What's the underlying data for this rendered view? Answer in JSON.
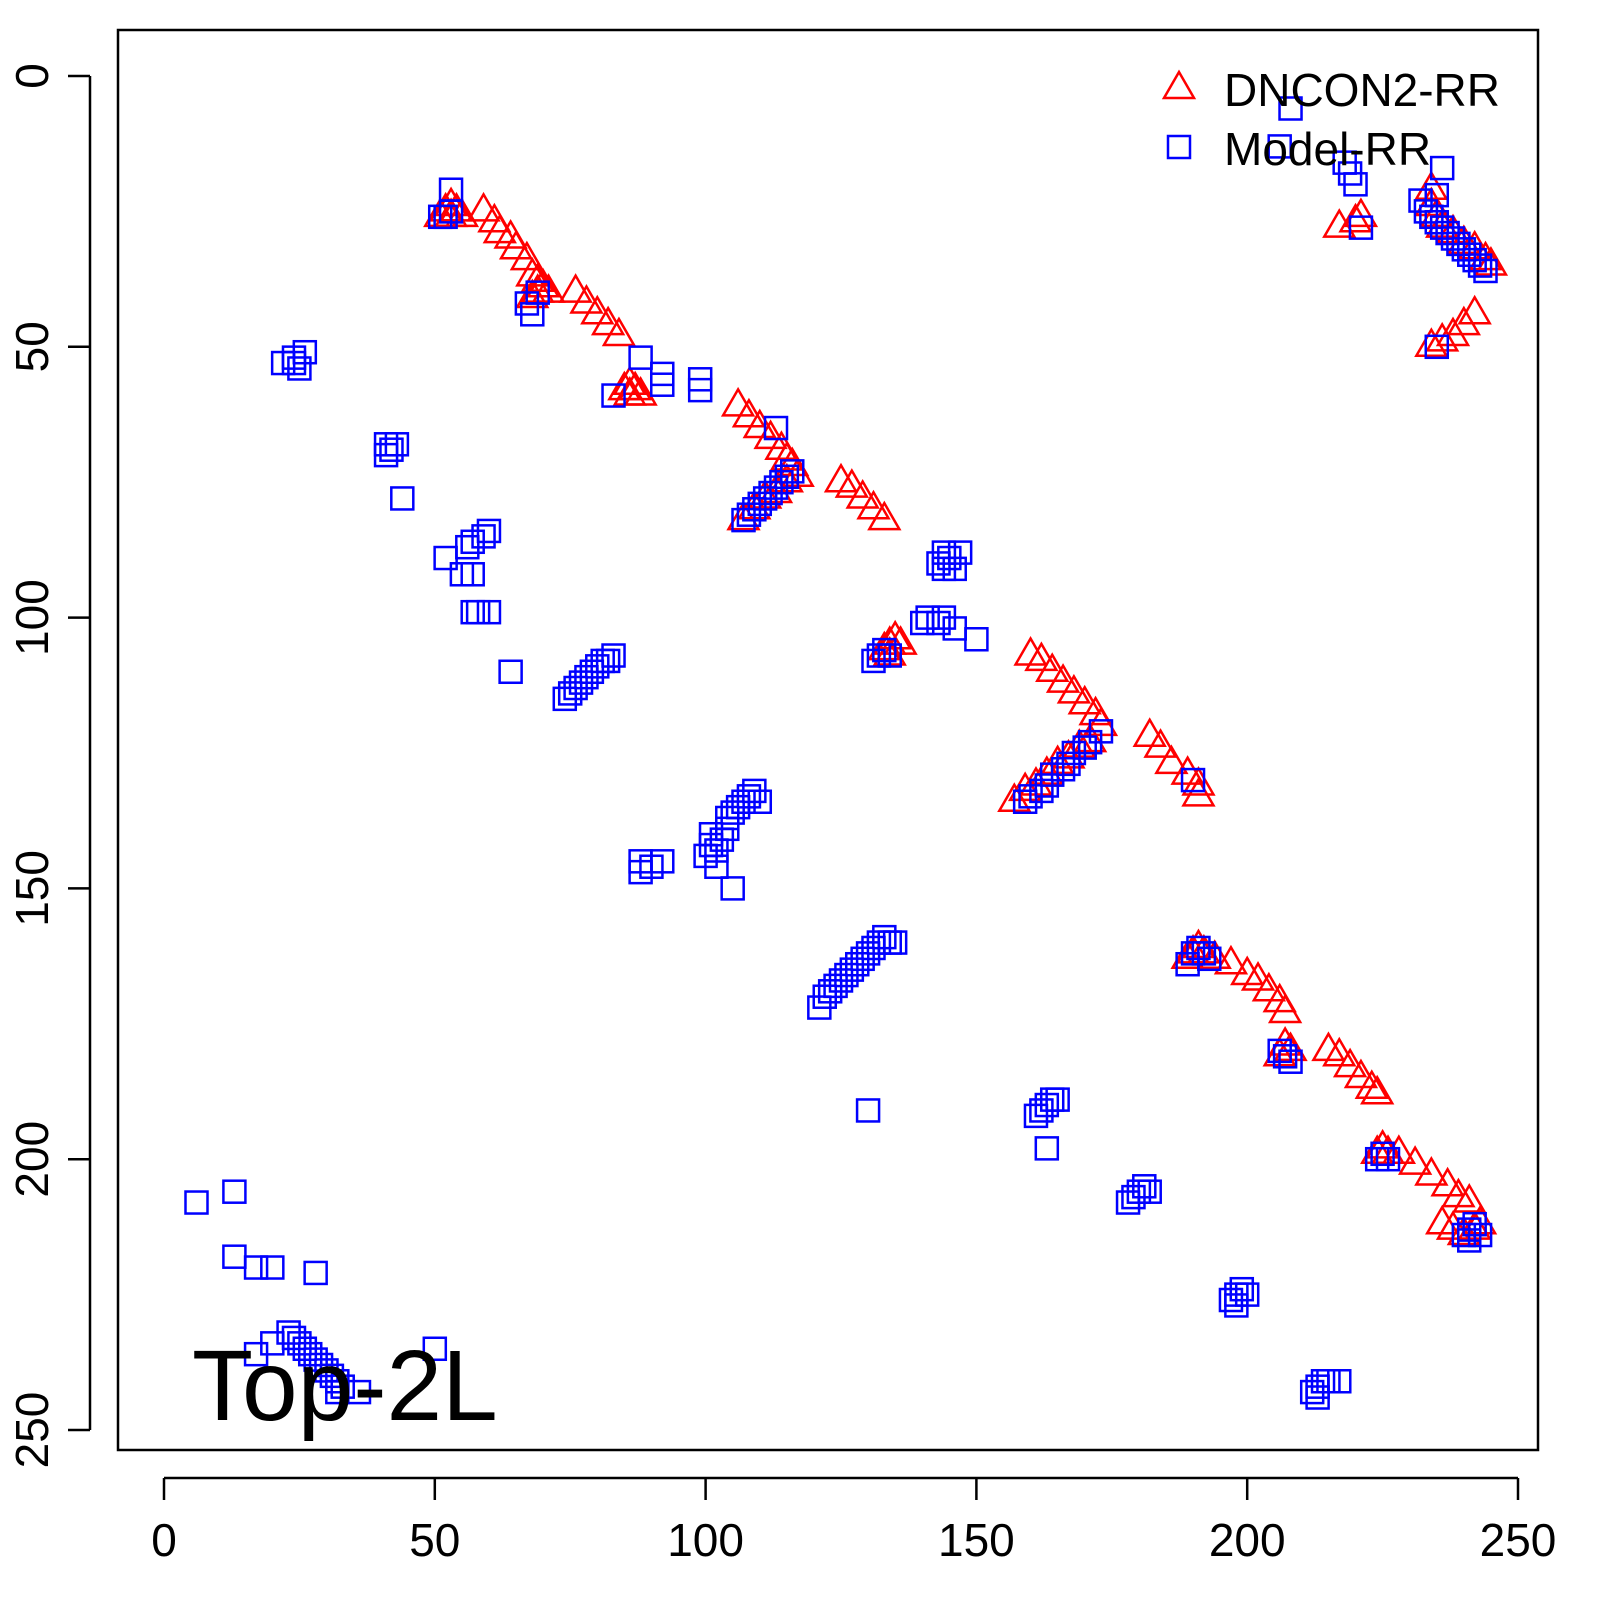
{
  "chart_data": {
    "type": "scatter",
    "title": "",
    "annotation": "Top-2L",
    "xlabel": "",
    "ylabel": "",
    "xlim": [
      -9,
      253
    ],
    "ylim": [
      -9,
      253
    ],
    "y_inverted": true,
    "xticks": [
      0,
      50,
      100,
      150,
      200,
      250
    ],
    "yticks": [
      0,
      50,
      100,
      150,
      200,
      250
    ],
    "legend_position": "top-right",
    "series": [
      {
        "name": "DNCON2-RR",
        "marker": "triangle",
        "color": "#ff0000",
        "points": [
          [
            53,
            24
          ],
          [
            52,
            25
          ],
          [
            54,
            25
          ],
          [
            53,
            26
          ],
          [
            51,
            26
          ],
          [
            55,
            26
          ],
          [
            59,
            25
          ],
          [
            61,
            27
          ],
          [
            62,
            29
          ],
          [
            64,
            30
          ],
          [
            65,
            32
          ],
          [
            67,
            34
          ],
          [
            68,
            37
          ],
          [
            69,
            38
          ],
          [
            70,
            39
          ],
          [
            69,
            40
          ],
          [
            68,
            41
          ],
          [
            71,
            40
          ],
          [
            76,
            40
          ],
          [
            78,
            42
          ],
          [
            80,
            44
          ],
          [
            82,
            46
          ],
          [
            84,
            48
          ],
          [
            85,
            58
          ],
          [
            86,
            57
          ],
          [
            87,
            58
          ],
          [
            86,
            59
          ],
          [
            88,
            59
          ],
          [
            106,
            61
          ],
          [
            108,
            63
          ],
          [
            110,
            65
          ],
          [
            112,
            67
          ],
          [
            114,
            69
          ],
          [
            115,
            71
          ],
          [
            116,
            72
          ],
          [
            117,
            74
          ],
          [
            107,
            82
          ],
          [
            109,
            80
          ],
          [
            111,
            78
          ],
          [
            113,
            77
          ],
          [
            115,
            75
          ],
          [
            125,
            75
          ],
          [
            127,
            76
          ],
          [
            129,
            78
          ],
          [
            131,
            80
          ],
          [
            133,
            82
          ],
          [
            133,
            106
          ],
          [
            134,
            105
          ],
          [
            135,
            104
          ],
          [
            136,
            105
          ],
          [
            134,
            107
          ],
          [
            160,
            107
          ],
          [
            162,
            108
          ],
          [
            164,
            110
          ],
          [
            166,
            112
          ],
          [
            168,
            114
          ],
          [
            170,
            116
          ],
          [
            172,
            118
          ],
          [
            173,
            120
          ],
          [
            157,
            134
          ],
          [
            159,
            132
          ],
          [
            161,
            131
          ],
          [
            163,
            129
          ],
          [
            165,
            127
          ],
          [
            167,
            126
          ],
          [
            169,
            124
          ],
          [
            171,
            123
          ],
          [
            182,
            122
          ],
          [
            184,
            124
          ],
          [
            186,
            127
          ],
          [
            189,
            129
          ],
          [
            191,
            131
          ],
          [
            191,
            133
          ],
          [
            190,
            162
          ],
          [
            191,
            161
          ],
          [
            192,
            162
          ],
          [
            189,
            163
          ],
          [
            194,
            163
          ],
          [
            197,
            164
          ],
          [
            200,
            166
          ],
          [
            202,
            167
          ],
          [
            204,
            169
          ],
          [
            206,
            171
          ],
          [
            207,
            173
          ],
          [
            207,
            179
          ],
          [
            208,
            180
          ],
          [
            206,
            181
          ],
          [
            215,
            180
          ],
          [
            217,
            181
          ],
          [
            219,
            183
          ],
          [
            221,
            185
          ],
          [
            223,
            187
          ],
          [
            224,
            188
          ],
          [
            225,
            198
          ],
          [
            224,
            199
          ],
          [
            226,
            199
          ],
          [
            228,
            199
          ],
          [
            231,
            201
          ],
          [
            234,
            203
          ],
          [
            237,
            205
          ],
          [
            239,
            207
          ],
          [
            241,
            208
          ],
          [
            236,
            212
          ],
          [
            238,
            213
          ],
          [
            240,
            214
          ],
          [
            242,
            213
          ],
          [
            243,
            212
          ],
          [
            217,
            28
          ],
          [
            220,
            27
          ],
          [
            221,
            26
          ],
          [
            234,
            21
          ],
          [
            234,
            24
          ],
          [
            235,
            26
          ],
          [
            236,
            28
          ],
          [
            238,
            29
          ],
          [
            240,
            31
          ],
          [
            242,
            32
          ],
          [
            244,
            34
          ],
          [
            245,
            35
          ],
          [
            234,
            50
          ],
          [
            236,
            49
          ],
          [
            238,
            48
          ],
          [
            240,
            46
          ],
          [
            242,
            44
          ]
        ]
      },
      {
        "name": "Model-RR",
        "marker": "square",
        "color": "#0000ff",
        "points": [
          [
            53,
            21
          ],
          [
            51,
            26
          ],
          [
            52,
            26
          ],
          [
            53,
            25
          ],
          [
            67,
            42
          ],
          [
            68,
            44
          ],
          [
            69,
            40
          ],
          [
            83,
            59
          ],
          [
            88,
            52
          ],
          [
            92,
            55
          ],
          [
            92,
            57
          ],
          [
            99,
            56
          ],
          [
            99,
            58
          ],
          [
            22,
            53
          ],
          [
            24,
            53
          ],
          [
            24,
            52
          ],
          [
            25,
            54
          ],
          [
            26,
            51
          ],
          [
            41,
            70
          ],
          [
            42,
            69
          ],
          [
            43,
            68
          ],
          [
            41,
            68
          ],
          [
            44,
            78
          ],
          [
            52,
            89
          ],
          [
            56,
            87
          ],
          [
            57,
            86
          ],
          [
            59,
            85
          ],
          [
            60,
            84
          ],
          [
            55,
            92
          ],
          [
            57,
            92
          ],
          [
            57,
            99
          ],
          [
            58,
            99
          ],
          [
            60,
            99
          ],
          [
            64,
            110
          ],
          [
            74,
            115
          ],
          [
            75,
            114
          ],
          [
            76,
            113
          ],
          [
            77,
            112
          ],
          [
            78,
            111
          ],
          [
            79,
            110
          ],
          [
            80,
            109
          ],
          [
            81,
            108
          ],
          [
            82,
            108
          ],
          [
            83,
            107
          ],
          [
            107,
            82
          ],
          [
            108,
            81
          ],
          [
            109,
            80
          ],
          [
            110,
            79
          ],
          [
            111,
            78
          ],
          [
            112,
            77
          ],
          [
            113,
            76
          ],
          [
            114,
            75
          ],
          [
            115,
            74
          ],
          [
            116,
            73
          ],
          [
            113,
            65
          ],
          [
            131,
            108
          ],
          [
            132,
            107
          ],
          [
            133,
            106
          ],
          [
            134,
            107
          ],
          [
            140,
            101
          ],
          [
            141,
            100
          ],
          [
            143,
            101
          ],
          [
            144,
            100
          ],
          [
            146,
            102
          ],
          [
            150,
            104
          ],
          [
            143,
            90
          ],
          [
            144,
            88
          ],
          [
            145,
            89
          ],
          [
            147,
            88
          ],
          [
            144,
            91
          ],
          [
            146,
            91
          ],
          [
            159,
            134
          ],
          [
            160,
            133
          ],
          [
            162,
            132
          ],
          [
            163,
            131
          ],
          [
            164,
            129
          ],
          [
            166,
            128
          ],
          [
            167,
            127
          ],
          [
            168,
            125
          ],
          [
            170,
            124
          ],
          [
            171,
            123
          ],
          [
            173,
            121
          ],
          [
            190,
            130
          ],
          [
            88,
            147
          ],
          [
            88,
            145
          ],
          [
            90,
            146
          ],
          [
            92,
            145
          ],
          [
            100,
            144
          ],
          [
            101,
            142
          ],
          [
            101,
            140
          ],
          [
            102,
            143
          ],
          [
            103,
            141
          ],
          [
            104,
            137
          ],
          [
            104,
            139
          ],
          [
            105,
            136
          ],
          [
            106,
            135
          ],
          [
            107,
            134
          ],
          [
            108,
            133
          ],
          [
            109,
            132
          ],
          [
            110,
            134
          ],
          [
            102,
            146
          ],
          [
            105,
            150
          ],
          [
            121,
            172
          ],
          [
            122,
            170
          ],
          [
            123,
            169
          ],
          [
            124,
            168
          ],
          [
            125,
            167
          ],
          [
            126,
            166
          ],
          [
            127,
            165
          ],
          [
            128,
            164
          ],
          [
            129,
            163
          ],
          [
            130,
            162
          ],
          [
            131,
            161
          ],
          [
            132,
            160
          ],
          [
            133,
            159
          ],
          [
            134,
            160
          ],
          [
            135,
            160
          ],
          [
            130,
            191
          ],
          [
            161,
            192
          ],
          [
            162,
            191
          ],
          [
            163,
            190
          ],
          [
            164,
            189
          ],
          [
            165,
            189
          ],
          [
            163,
            198
          ],
          [
            178,
            208
          ],
          [
            179,
            207
          ],
          [
            180,
            206
          ],
          [
            181,
            205
          ],
          [
            182,
            206
          ],
          [
            197,
            226
          ],
          [
            198,
            225
          ],
          [
            199,
            224
          ],
          [
            200,
            225
          ],
          [
            198,
            227
          ],
          [
            212,
            243
          ],
          [
            213,
            242
          ],
          [
            214,
            241
          ],
          [
            215,
            241
          ],
          [
            217,
            241
          ],
          [
            213,
            244
          ],
          [
            189,
            164
          ],
          [
            190,
            162
          ],
          [
            191,
            161
          ],
          [
            192,
            162
          ],
          [
            193,
            163
          ],
          [
            207,
            181
          ],
          [
            206,
            180
          ],
          [
            208,
            182
          ],
          [
            225,
            199
          ],
          [
            226,
            200
          ],
          [
            224,
            200
          ],
          [
            240,
            214
          ],
          [
            241,
            213
          ],
          [
            242,
            212
          ],
          [
            243,
            214
          ],
          [
            241,
            215
          ],
          [
            208,
            6
          ],
          [
            206,
            13
          ],
          [
            218,
            16
          ],
          [
            219,
            18
          ],
          [
            220,
            20
          ],
          [
            221,
            28
          ],
          [
            236,
            17
          ],
          [
            235,
            22
          ],
          [
            232,
            23
          ],
          [
            233,
            25
          ],
          [
            234,
            26
          ],
          [
            235,
            27
          ],
          [
            236,
            28
          ],
          [
            237,
            29
          ],
          [
            238,
            30
          ],
          [
            239,
            31
          ],
          [
            240,
            32
          ],
          [
            241,
            33
          ],
          [
            242,
            34
          ],
          [
            243,
            35
          ],
          [
            244,
            36
          ],
          [
            235,
            50
          ],
          [
            6,
            208
          ],
          [
            13,
            206
          ],
          [
            13,
            218
          ],
          [
            17,
            220
          ],
          [
            20,
            220
          ],
          [
            28,
            221
          ],
          [
            17,
            236
          ],
          [
            20,
            234
          ],
          [
            23,
            232
          ],
          [
            24,
            233
          ],
          [
            25,
            234
          ],
          [
            26,
            235
          ],
          [
            27,
            236
          ],
          [
            28,
            237
          ],
          [
            29,
            238
          ],
          [
            30,
            239
          ],
          [
            31,
            240
          ],
          [
            32,
            241
          ],
          [
            33,
            242
          ],
          [
            32,
            243
          ],
          [
            36,
            243
          ],
          [
            50,
            235
          ]
        ]
      }
    ]
  }
}
